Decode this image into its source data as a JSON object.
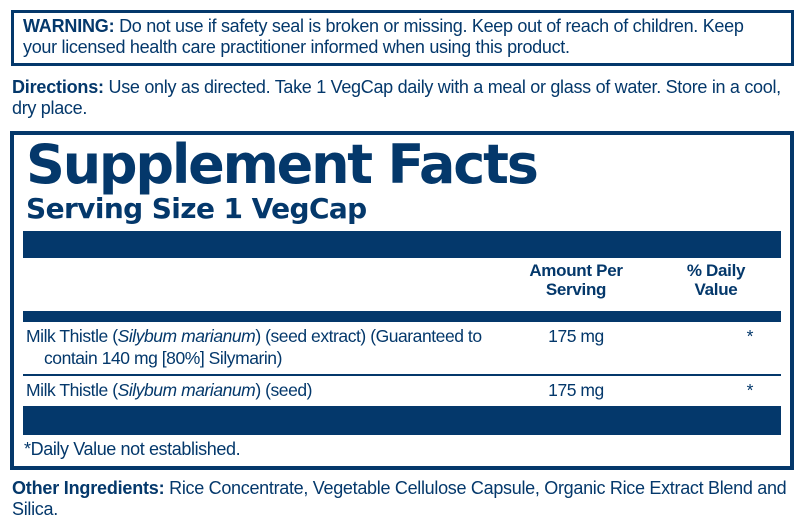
{
  "colors": {
    "navy": "#04386b",
    "background": "#ffffff"
  },
  "warning": {
    "label": "WARNING:",
    "text": "Do not use if safety seal is broken or missing. Keep out of reach of children. Keep your licensed health care practitioner informed when using this product."
  },
  "directions": {
    "label": "Directions:",
    "text": "Use only as directed. Take 1 VegCap daily with a meal or glass of water. Store in a cool, dry place."
  },
  "supplement_facts": {
    "title": "Supplement Facts",
    "serving_size": "Serving Size 1 VegCap",
    "columns": {
      "amount_lines": [
        "Amount Per",
        "Serving"
      ],
      "dv_lines": [
        "% Daily",
        "Value"
      ]
    },
    "rows": [
      {
        "name_lines": [
          [
            {
              "text": "Milk Thistle ("
            },
            {
              "text": "Silybum marianum",
              "italic": true
            },
            {
              "text": ") (seed extract) (Guaranteed to"
            }
          ],
          [
            {
              "text": "contain 140 mg [80%] Silymarin)"
            }
          ]
        ],
        "amount": "175 mg",
        "dv": "*"
      },
      {
        "name_lines": [
          [
            {
              "text": "Milk Thistle ("
            },
            {
              "text": "Silybum marianum",
              "italic": true
            },
            {
              "text": ") (seed)"
            }
          ]
        ],
        "amount": "175 mg",
        "dv": "*"
      }
    ],
    "footnote": "*Daily Value not established."
  },
  "other_ingredients": {
    "label": "Other Ingredients:",
    "text": "Rice Concentrate, Vegetable Cellulose Capsule, Organic Rice Extract Blend and Silica."
  }
}
